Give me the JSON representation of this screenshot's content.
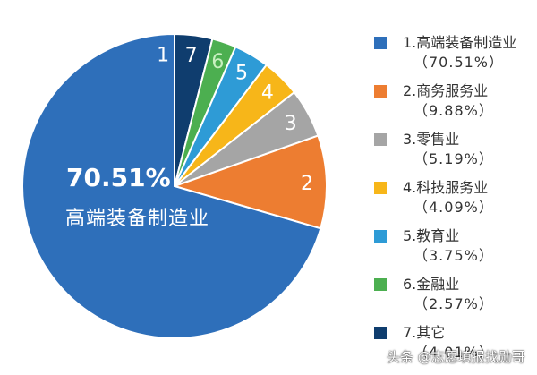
{
  "chart_data": {
    "type": "pie",
    "title": "",
    "categories": [
      "1.高端装备制造业",
      "2.商务服务业",
      "3.零售业",
      "4.科技服务业",
      "5.教育业",
      "6.金融业",
      "7.其它"
    ],
    "slice_numbers": [
      "1",
      "2",
      "3",
      "4",
      "5",
      "6",
      "7"
    ],
    "values": [
      70.51,
      9.88,
      5.19,
      4.09,
      3.75,
      2.57,
      4.01
    ],
    "value_labels": [
      "（70.51%）",
      "（9.88%）",
      "（5.19%）",
      "（4.09%）",
      "（3.75%）",
      "（2.57%）",
      "（4.01%）"
    ],
    "colors": [
      "#2e6fba",
      "#ed7d31",
      "#a5a5a5",
      "#f7b619",
      "#2e9bd6",
      "#4caf50",
      "#0f3d6e"
    ],
    "legend_position": "right",
    "start_angle_deg": 0,
    "direction": "clockwise-from-top, slice 1 wraps counter-clockwise",
    "callout": {
      "value": "70.51%",
      "label": "高端装备制造业"
    }
  },
  "watermark": "头条 @志愿填报找勋哥"
}
